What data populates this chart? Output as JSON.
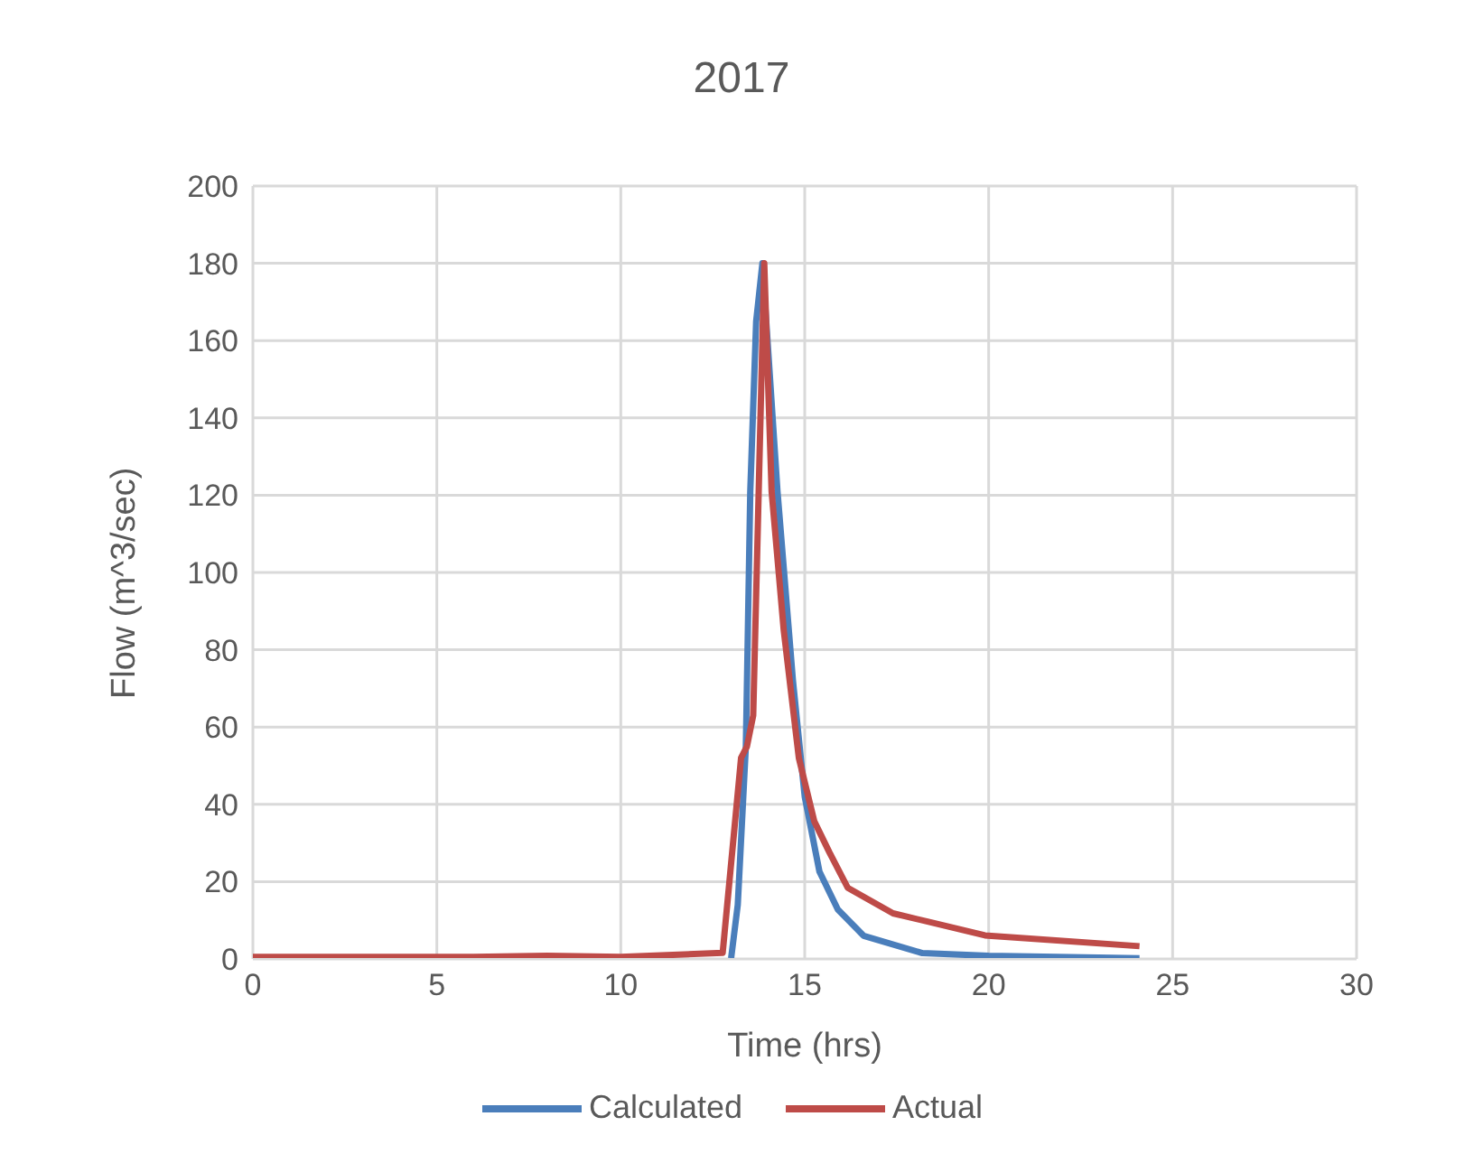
{
  "chart_data": {
    "type": "line",
    "title": "2017",
    "xlabel": "Time (hrs)",
    "ylabel": "Flow (m^3/sec)",
    "xlim": [
      0,
      30
    ],
    "xticks": [
      0,
      5,
      10,
      15,
      20,
      25,
      30
    ],
    "ylim": [
      0,
      200
    ],
    "yticks": [
      0,
      20,
      40,
      60,
      80,
      100,
      120,
      140,
      160,
      180,
      200
    ],
    "grid": true,
    "legend": "bottom",
    "marker": "none",
    "line_style": "solid",
    "series": [
      {
        "name": "Calculated",
        "color": "#4a7ebb",
        "x": [
          13.0,
          13.18,
          13.4,
          13.52,
          13.68,
          13.85,
          14.26,
          14.68,
          15.0,
          15.4,
          15.9,
          16.6,
          18.2,
          20,
          24.1
        ],
        "values": [
          0.2,
          14,
          55,
          121,
          165,
          180,
          121,
          72,
          42,
          22.6,
          12.8,
          6,
          1.5,
          0.8,
          0.2
        ]
      },
      {
        "name": "Actual",
        "color": "#be4b48",
        "x": [
          0,
          6,
          8,
          10,
          12.77,
          13.27,
          13.43,
          13.6,
          13.9,
          14.1,
          14.43,
          14.84,
          15.26,
          15.67,
          16.17,
          17.4,
          19.9,
          24.1
        ],
        "values": [
          0.5,
          0.5,
          0.8,
          0.5,
          1.6,
          52,
          55,
          63,
          180,
          121,
          85,
          52,
          35.6,
          27.6,
          18.4,
          11.8,
          6.1,
          3.3
        ]
      }
    ]
  }
}
